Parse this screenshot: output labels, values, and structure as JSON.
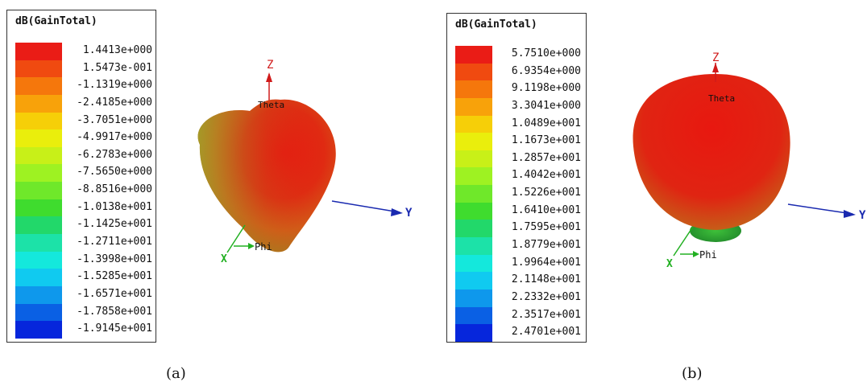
{
  "panels": [
    {
      "legend": {
        "title": "dB(GainTotal)",
        "values": [
          "1.4413e+000",
          "1.5473e-001",
          "-1.1319e+000",
          "-2.4185e+000",
          "-3.7051e+000",
          "-4.9917e+000",
          "-6.2783e+000",
          "-7.5650e+000",
          "-8.8516e+000",
          "-1.0138e+001",
          "-1.1425e+001",
          "-1.2711e+001",
          "-1.3998e+001",
          "-1.5285e+001",
          "-1.6571e+001",
          "-1.7858e+001",
          "-1.9145e+001"
        ],
        "colors": [
          "#ea1c16",
          "#f04a10",
          "#f5770c",
          "#f8a20a",
          "#f6cf08",
          "#eaee0c",
          "#c8f018",
          "#9ef222",
          "#6fe82a",
          "#3fdc2e",
          "#22d86a",
          "#1ce2a8",
          "#14e8dc",
          "#10caf0",
          "#0e98ec",
          "#0a60e4",
          "#0626dc"
        ]
      },
      "axes": {
        "z": "Z",
        "y": "Y",
        "x": "X",
        "theta": "Theta",
        "phi": "Phi"
      },
      "caption": "(a)"
    },
    {
      "legend": {
        "title": "dB(GainTotal)",
        "values": [
          "5.7510e+000",
          "6.9354e+000",
          "9.1198e+000",
          "3.3041e+000",
          "1.0489e+001",
          "1.1673e+001",
          "1.2857e+001",
          "1.4042e+001",
          "1.5226e+001",
          "1.6410e+001",
          "1.7595e+001",
          "1.8779e+001",
          "1.9964e+001",
          "2.1148e+001",
          "2.2332e+001",
          "2.3517e+001",
          "2.4701e+001"
        ],
        "colors": [
          "#ea1c16",
          "#f04a10",
          "#f5770c",
          "#f8a20a",
          "#f6cf08",
          "#eaee0c",
          "#c8f018",
          "#9ef222",
          "#6fe82a",
          "#3fdc2e",
          "#22d86a",
          "#1ce2a8",
          "#14e8dc",
          "#10caf0",
          "#0e98ec",
          "#0a60e4",
          "#0626dc"
        ]
      },
      "axes": {
        "z": "Z",
        "y": "Y",
        "x": "X",
        "theta": "Theta",
        "phi": "Phi"
      },
      "caption": "(b)"
    }
  ]
}
